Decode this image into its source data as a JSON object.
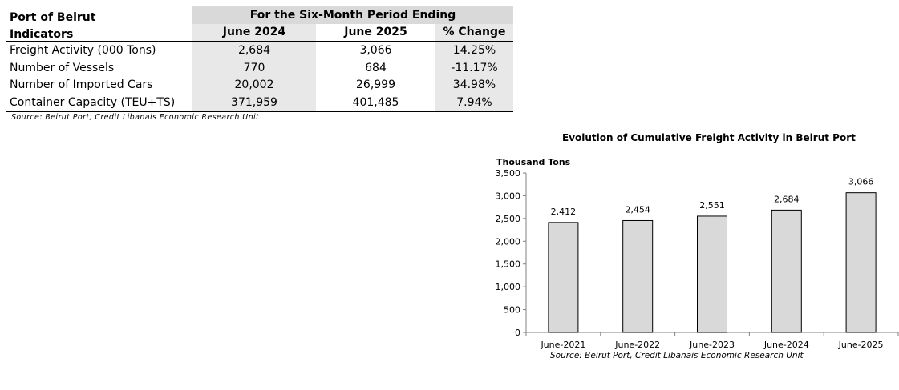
{
  "table": {
    "title_line1": "Port of Beirut",
    "title_line2": "Indicators",
    "period_header": "For the Six-Month Period Ending",
    "columns": [
      "June 2024",
      "June 2025",
      "% Change"
    ],
    "rows": [
      {
        "label": "Freight Activity (000 Tons)",
        "v1": "2,684",
        "v2": "3,066",
        "change": "14.25%"
      },
      {
        "label": "Number of Vessels",
        "v1": "770",
        "v2": "684",
        "change": "-11.17%"
      },
      {
        "label": "Number of Imported Cars",
        "v1": "20,002",
        "v2": "26,999",
        "change": "34.98%"
      },
      {
        "label": "Container Capacity (TEU+TS)",
        "v1": "371,959",
        "v2": "401,485",
        "change": "7.94%"
      }
    ],
    "source": "Source: Beirut Port, Credit Libanais Economic Research Unit"
  },
  "chart_data": {
    "type": "bar",
    "title": "Evolution of Cumulative Freight Activity in Beirut Port",
    "ylabel": "Thousand Tons",
    "categories": [
      "June-2021",
      "June-2022",
      "June-2023",
      "June-2024",
      "June-2025"
    ],
    "values": [
      2412,
      2454,
      2551,
      2684,
      3066
    ],
    "value_labels": [
      "2,412",
      "2,454",
      "2,551",
      "2,684",
      "3,066"
    ],
    "ylim": [
      0,
      3500
    ],
    "yticks": [
      0,
      500,
      1000,
      1500,
      2000,
      2500,
      3000,
      3500
    ],
    "ytick_labels": [
      "0",
      "500",
      "1,000",
      "1,500",
      "2,000",
      "2,500",
      "3,000",
      "3,500"
    ],
    "grid": false,
    "bar_color": "#d9d9d9",
    "source": "Source: Beirut Port, Credit Libanais Economic Research Unit"
  }
}
